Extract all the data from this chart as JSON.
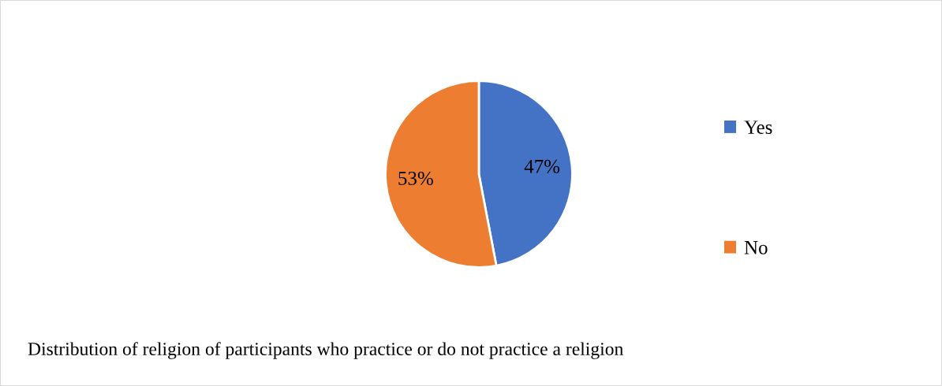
{
  "chart_data": {
    "type": "pie",
    "title": "Distribution of religion of participants who practice or do not practice a religion",
    "categories": [
      "Yes",
      "No"
    ],
    "values": [
      47,
      53
    ],
    "colors": [
      "#4472c4",
      "#ed7d31"
    ],
    "value_labels": [
      "47%",
      "53%"
    ],
    "legend": "right"
  }
}
